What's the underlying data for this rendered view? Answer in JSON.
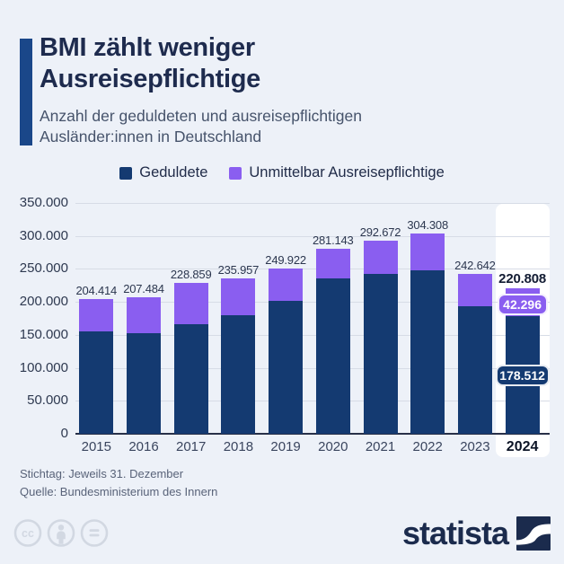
{
  "header": {
    "title": "BMI zählt weniger Ausreisepflichtige",
    "subtitle": "Anzahl der geduldeten und ausreisepflichtigen Ausländer:innen in Deutschland"
  },
  "legend": {
    "items": [
      {
        "label": "Geduldete",
        "color": "#143a71"
      },
      {
        "label": "Unmittelbar Ausreisepflichtige",
        "color": "#8a5ef0"
      }
    ]
  },
  "chart_data": {
    "type": "bar",
    "stacked": true,
    "categories": [
      "2015",
      "2016",
      "2017",
      "2018",
      "2019",
      "2020",
      "2021",
      "2022",
      "2023",
      "2024"
    ],
    "series": [
      {
        "name": "Geduldete",
        "color": "#143a71",
        "values": [
          155000,
          153000,
          166000,
          180000,
          202000,
          236000,
          242000,
          248000,
          194000,
          178512
        ]
      },
      {
        "name": "Unmittelbar Ausreisepflichtige",
        "color": "#8a5ef0",
        "values": [
          49414,
          54484,
          62859,
          55957,
          47922,
          45143,
          50672,
          56308,
          48642,
          42296
        ]
      }
    ],
    "totals": [
      204414,
      207484,
      228859,
      235957,
      249922,
      281143,
      292672,
      304308,
      242642,
      220808
    ],
    "total_labels": [
      "204.414",
      "207.484",
      "228.859",
      "235.957",
      "249.922",
      "281.143",
      "292.672",
      "304.308",
      "242.642",
      "220.808"
    ],
    "ytick_labels": [
      "0",
      "50.000",
      "100.000",
      "150.000",
      "200.000",
      "250.000",
      "300.000",
      "350.000"
    ],
    "ylim": [
      0,
      350000
    ],
    "ytick_step": 50000,
    "grid": true,
    "legend_position": "top",
    "highlight_category": "2024",
    "callouts": {
      "total_label": "220.808",
      "ausreisepflichtige_label": "42.296",
      "geduldete_label": "178.512"
    }
  },
  "footer": {
    "line1": "Stichtag: Jeweils 31. Dezember",
    "line2": "Quelle: Bundesministerium des Innern"
  },
  "branding": {
    "logo_text": "statista",
    "license_icons": [
      "cc",
      "attribution",
      "no-derivatives"
    ]
  },
  "colors": {
    "background": "#edf1f8",
    "accent_bar": "#1a4789",
    "title_text": "#1e2b4e",
    "geduldete": "#143a71",
    "ausreisepflichtige": "#8a5ef0",
    "highlight_column": "#ffffff"
  }
}
